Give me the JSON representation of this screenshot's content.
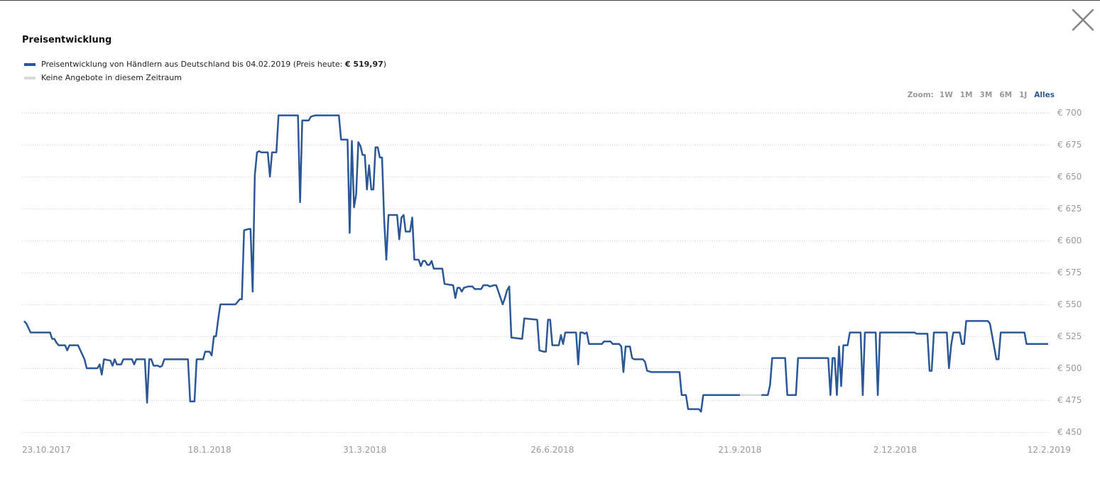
{
  "header": {
    "title": "Preisentwicklung",
    "close_icon": "close-icon"
  },
  "legend": {
    "series_label_pre": "Preisentwicklung von Händlern aus Deutschland bis 04.02.2019 (Preis heute: ",
    "series_price": "€ 519,97",
    "series_label_post": ")",
    "gap_label": "Keine Angebote in diesem Zeitraum"
  },
  "zoom": {
    "label": "Zoom:",
    "options": [
      "1W",
      "1M",
      "3M",
      "6M",
      "1J",
      "Alles"
    ],
    "active": "Alles"
  },
  "colors": {
    "series": "#2b5797",
    "gap": "#d9d9d9",
    "grid": "#cfcfcf"
  },
  "chart_data": {
    "type": "line",
    "x_type": "date",
    "x_range": [
      "2017-10-23",
      "2019-02-12"
    ],
    "ylim": [
      450,
      700
    ],
    "y_ticks": [
      450,
      475,
      500,
      525,
      550,
      575,
      600,
      625,
      650,
      675,
      700
    ],
    "y_tick_labels": [
      "€ 450",
      "€ 475",
      "€ 500",
      "€ 525",
      "€ 550",
      "€ 575",
      "€ 600",
      "€ 625",
      "€ 650",
      "€ 675",
      "€ 700"
    ],
    "x_ticks": [
      "2017-10-23",
      "2018-01-18",
      "2018-03-31",
      "2018-06-26",
      "2018-09-21",
      "2018-12-02",
      "2019-02-12"
    ],
    "x_tick_labels": [
      "23.10.2017",
      "18.1.2018",
      "31.3.2018",
      "26.6.2018",
      "21.9.2018",
      "2.12.2018",
      "12.2.2019"
    ],
    "grid": "horizontal-dotted",
    "series": [
      {
        "color": "#2b5797",
        "points": [
          [
            "2017-10-24",
            537
          ],
          [
            "2017-10-25",
            535
          ],
          [
            "2017-10-27",
            528
          ],
          [
            "2017-10-31",
            528
          ],
          [
            "2017-11-03",
            528
          ],
          [
            "2017-11-05",
            528
          ],
          [
            "2017-11-06",
            523
          ],
          [
            "2017-11-07",
            523
          ],
          [
            "2017-11-08",
            520
          ],
          [
            "2017-11-09",
            518
          ],
          [
            "2017-11-12",
            518
          ],
          [
            "2017-11-13",
            514
          ],
          [
            "2017-11-14",
            518
          ],
          [
            "2017-11-18",
            518
          ],
          [
            "2017-11-21",
            507
          ],
          [
            "2017-11-22",
            500
          ],
          [
            "2017-11-27",
            500
          ],
          [
            "2017-11-28",
            503
          ],
          [
            "2017-11-29",
            495
          ],
          [
            "2017-11-30",
            507
          ],
          [
            "2017-12-03",
            506
          ],
          [
            "2017-12-04",
            502
          ],
          [
            "2017-12-05",
            507
          ],
          [
            "2017-12-06",
            503
          ],
          [
            "2017-12-08",
            503
          ],
          [
            "2017-12-09",
            507
          ],
          [
            "2017-12-13",
            507
          ],
          [
            "2017-12-14",
            503
          ],
          [
            "2017-12-15",
            507
          ],
          [
            "2017-12-19",
            507
          ],
          [
            "2017-12-20",
            473
          ],
          [
            "2017-12-21",
            507
          ],
          [
            "2017-12-22",
            507
          ],
          [
            "2017-12-23",
            502
          ],
          [
            "2017-12-25",
            502
          ],
          [
            "2017-12-26",
            501
          ],
          [
            "2017-12-27",
            502
          ],
          [
            "2017-12-28",
            507
          ],
          [
            "2018-01-08",
            507
          ],
          [
            "2018-01-09",
            474
          ],
          [
            "2018-01-11",
            474
          ],
          [
            "2018-01-12",
            507
          ],
          [
            "2018-01-15",
            507
          ],
          [
            "2018-01-16",
            513
          ],
          [
            "2018-01-18",
            513
          ],
          [
            "2018-01-19",
            510
          ],
          [
            "2018-01-20",
            525
          ],
          [
            "2018-01-21",
            525
          ],
          [
            "2018-01-22",
            538
          ],
          [
            "2018-01-23",
            550
          ],
          [
            "2018-01-30",
            550
          ],
          [
            "2018-01-31",
            552
          ],
          [
            "2018-02-01",
            554
          ],
          [
            "2018-02-02",
            554
          ],
          [
            "2018-02-03",
            608
          ],
          [
            "2018-02-05",
            609
          ],
          [
            "2018-02-06",
            609
          ],
          [
            "2018-02-07",
            560
          ],
          [
            "2018-02-08",
            651
          ],
          [
            "2018-02-09",
            669
          ],
          [
            "2018-02-10",
            670
          ],
          [
            "2018-02-11",
            669
          ],
          [
            "2018-02-14",
            669
          ],
          [
            "2018-02-15",
            650
          ],
          [
            "2018-02-16",
            669
          ],
          [
            "2018-02-18",
            669
          ],
          [
            "2018-02-19",
            698
          ],
          [
            "2018-02-28",
            698
          ],
          [
            "2018-03-01",
            630
          ],
          [
            "2018-03-02",
            694
          ],
          [
            "2018-03-05",
            694
          ],
          [
            "2018-03-06",
            697
          ],
          [
            "2018-03-08",
            698
          ],
          [
            "2018-03-19",
            698
          ],
          [
            "2018-03-20",
            679
          ],
          [
            "2018-03-23",
            679
          ],
          [
            "2018-03-24",
            606
          ],
          [
            "2018-03-25",
            678
          ],
          [
            "2018-03-26",
            626
          ],
          [
            "2018-03-27",
            636
          ],
          [
            "2018-03-28",
            677
          ],
          [
            "2018-03-29",
            674
          ],
          [
            "2018-03-30",
            667
          ],
          [
            "2018-03-31",
            667
          ],
          [
            "2018-04-01",
            640
          ],
          [
            "2018-04-02",
            659
          ],
          [
            "2018-04-03",
            640
          ],
          [
            "2018-04-04",
            640
          ],
          [
            "2018-04-05",
            673
          ],
          [
            "2018-04-06",
            673
          ],
          [
            "2018-04-07",
            665
          ],
          [
            "2018-04-08",
            665
          ],
          [
            "2018-04-09",
            616
          ],
          [
            "2018-04-10",
            585
          ],
          [
            "2018-04-11",
            620
          ],
          [
            "2018-04-15",
            620
          ],
          [
            "2018-04-16",
            601
          ],
          [
            "2018-04-17",
            618
          ],
          [
            "2018-04-18",
            620
          ],
          [
            "2018-04-19",
            607
          ],
          [
            "2018-04-21",
            607
          ],
          [
            "2018-04-22",
            618
          ],
          [
            "2018-04-23",
            585
          ],
          [
            "2018-04-25",
            585
          ],
          [
            "2018-04-26",
            580
          ],
          [
            "2018-04-27",
            584
          ],
          [
            "2018-04-28",
            584
          ],
          [
            "2018-04-29",
            581
          ],
          [
            "2018-04-30",
            581
          ],
          [
            "2018-05-01",
            584
          ],
          [
            "2018-05-02",
            578
          ],
          [
            "2018-05-06",
            578
          ],
          [
            "2018-05-07",
            566
          ],
          [
            "2018-05-11",
            565
          ],
          [
            "2018-05-12",
            555
          ],
          [
            "2018-05-13",
            563
          ],
          [
            "2018-05-14",
            563
          ],
          [
            "2018-05-15",
            560
          ],
          [
            "2018-05-16",
            563
          ],
          [
            "2018-05-18",
            564
          ],
          [
            "2018-05-20",
            564
          ],
          [
            "2018-05-21",
            562
          ],
          [
            "2018-05-24",
            562
          ],
          [
            "2018-05-25",
            565
          ],
          [
            "2018-05-27",
            565
          ],
          [
            "2018-05-28",
            564
          ],
          [
            "2018-05-30",
            565
          ],
          [
            "2018-05-31",
            565
          ],
          [
            "2018-06-02",
            555
          ],
          [
            "2018-06-03",
            550
          ],
          [
            "2018-06-04",
            555
          ],
          [
            "2018-06-05",
            561
          ],
          [
            "2018-06-06",
            564
          ],
          [
            "2018-06-07",
            524
          ],
          [
            "2018-06-12",
            523
          ],
          [
            "2018-06-13",
            539
          ],
          [
            "2018-06-19",
            538
          ],
          [
            "2018-06-20",
            514
          ],
          [
            "2018-06-22",
            513
          ],
          [
            "2018-06-23",
            513
          ],
          [
            "2018-06-24",
            538
          ],
          [
            "2018-06-25",
            538
          ],
          [
            "2018-06-26",
            518
          ],
          [
            "2018-06-29",
            518
          ],
          [
            "2018-06-30",
            526
          ],
          [
            "2018-07-01",
            519
          ],
          [
            "2018-07-02",
            528
          ],
          [
            "2018-07-07",
            528
          ],
          [
            "2018-07-08",
            503
          ],
          [
            "2018-07-09",
            528
          ],
          [
            "2018-07-10",
            528
          ],
          [
            "2018-07-11",
            527
          ],
          [
            "2018-07-12",
            528
          ],
          [
            "2018-07-13",
            519
          ],
          [
            "2018-07-19",
            519
          ],
          [
            "2018-07-20",
            521
          ],
          [
            "2018-07-23",
            521
          ],
          [
            "2018-07-24",
            519
          ],
          [
            "2018-07-27",
            519
          ],
          [
            "2018-07-28",
            517
          ],
          [
            "2018-07-29",
            497
          ],
          [
            "2018-07-30",
            517
          ],
          [
            "2018-08-01",
            517
          ],
          [
            "2018-08-02",
            508
          ],
          [
            "2018-08-03",
            507
          ],
          [
            "2018-08-07",
            507
          ],
          [
            "2018-08-08",
            505
          ],
          [
            "2018-08-09",
            498
          ],
          [
            "2018-08-11",
            497
          ],
          [
            "2018-08-24",
            497
          ],
          [
            "2018-08-25",
            479
          ],
          [
            "2018-08-27",
            479
          ],
          [
            "2018-08-28",
            468
          ],
          [
            "2018-09-02",
            468
          ],
          [
            "2018-09-03",
            466
          ],
          [
            "2018-09-04",
            479
          ],
          [
            "2018-09-21",
            479
          ]
        ]
      },
      {
        "color": "#2b5797",
        "points": [
          [
            "2018-10-01",
            479
          ],
          [
            "2018-10-04",
            479
          ],
          [
            "2018-10-05",
            487
          ],
          [
            "2018-10-06",
            508
          ],
          [
            "2018-10-12",
            508
          ],
          [
            "2018-10-13",
            479
          ],
          [
            "2018-10-17",
            479
          ],
          [
            "2018-10-18",
            508
          ],
          [
            "2018-11-01",
            508
          ],
          [
            "2018-11-02",
            479
          ],
          [
            "2018-11-03",
            508
          ],
          [
            "2018-11-04",
            508
          ],
          [
            "2018-11-05",
            479
          ],
          [
            "2018-11-06",
            517
          ],
          [
            "2018-11-07",
            486
          ],
          [
            "2018-11-08",
            518
          ],
          [
            "2018-11-10",
            518
          ],
          [
            "2018-11-11",
            528
          ],
          [
            "2018-11-16",
            528
          ],
          [
            "2018-11-17",
            479
          ],
          [
            "2018-11-18",
            528
          ],
          [
            "2018-11-23",
            528
          ],
          [
            "2018-11-24",
            479
          ],
          [
            "2018-11-25",
            528
          ],
          [
            "2018-12-11",
            528
          ],
          [
            "2018-12-12",
            527
          ],
          [
            "2018-12-17",
            527
          ],
          [
            "2018-12-18",
            498
          ],
          [
            "2018-12-19",
            498
          ],
          [
            "2018-12-20",
            528
          ],
          [
            "2018-12-26",
            528
          ],
          [
            "2018-12-27",
            500
          ],
          [
            "2018-12-28",
            518
          ],
          [
            "2018-12-29",
            528
          ],
          [
            "2019-01-01",
            528
          ],
          [
            "2019-01-02",
            519
          ],
          [
            "2019-01-03",
            519
          ],
          [
            "2019-01-04",
            537
          ],
          [
            "2019-01-14",
            537
          ],
          [
            "2019-01-15",
            535
          ],
          [
            "2019-01-18",
            507
          ],
          [
            "2019-01-19",
            507
          ],
          [
            "2019-01-20",
            528
          ],
          [
            "2019-01-31",
            528
          ],
          [
            "2019-02-01",
            519
          ],
          [
            "2019-02-11",
            519
          ]
        ]
      }
    ],
    "gap_segments": [
      {
        "color": "#d9d9d9",
        "points": [
          [
            "2018-09-21",
            479
          ],
          [
            "2018-10-01",
            479
          ]
        ]
      }
    ]
  }
}
